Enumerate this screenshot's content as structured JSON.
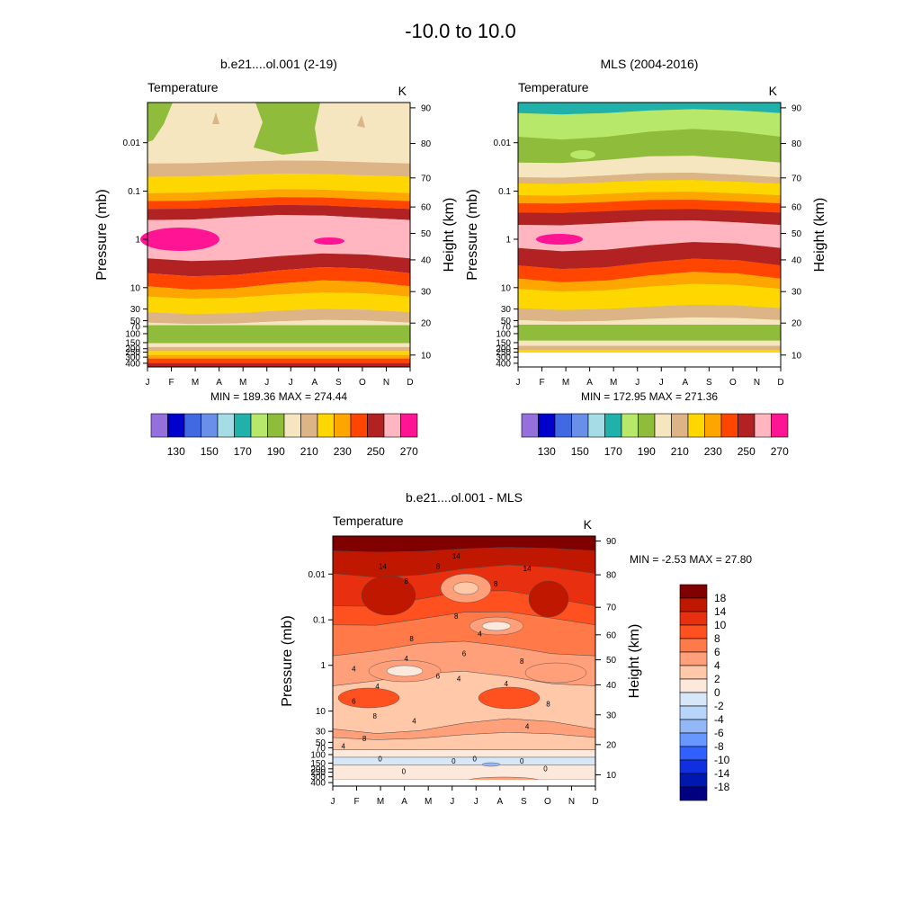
{
  "page_title": "-10.0 to  10.0",
  "chart_data": [
    {
      "type": "heatmap",
      "title": "b.e21....ol.001 (2-19)",
      "variable": "Temperature",
      "units": "K",
      "xlabel": "",
      "ylabel_left": "Pressure (mb)",
      "ylabel_right": "Height (km)",
      "x_ticks": [
        "J",
        "F",
        "M",
        "A",
        "M",
        "J",
        "J",
        "A",
        "S",
        "O",
        "N",
        "D"
      ],
      "pressure_ticks": [
        "0.01",
        "0.1",
        "1",
        "10",
        "30",
        "50",
        "70",
        "100",
        "150",
        "200",
        "250",
        "300",
        "400"
      ],
      "height_ticks": [
        "90",
        "80",
        "70",
        "60",
        "50",
        "40",
        "30",
        "20",
        "10"
      ],
      "min_max_text": "MIN = 189.36  MAX = 274.44",
      "min": 189.36,
      "max": 274.44,
      "color_levels": [
        130,
        140,
        150,
        160,
        170,
        180,
        190,
        200,
        210,
        220,
        230,
        240,
        250,
        260,
        270
      ],
      "colorbar_labels": [
        "130",
        "150",
        "170",
        "190",
        "210",
        "230",
        "250",
        "270"
      ]
    },
    {
      "type": "heatmap",
      "title": "MLS (2004-2016)",
      "variable": "Temperature",
      "units": "K",
      "xlabel": "",
      "ylabel_left": "Pressure (mb)",
      "ylabel_right": "Height (km)",
      "x_ticks": [
        "J",
        "F",
        "M",
        "A",
        "M",
        "J",
        "J",
        "A",
        "S",
        "O",
        "N",
        "D"
      ],
      "pressure_ticks": [
        "0.01",
        "0.1",
        "1",
        "10",
        "30",
        "50",
        "70",
        "100",
        "150",
        "200",
        "250",
        "300",
        "400"
      ],
      "height_ticks": [
        "90",
        "80",
        "70",
        "60",
        "50",
        "40",
        "30",
        "20",
        "10"
      ],
      "min_max_text": "MIN = 172.95  MAX = 271.36",
      "min": 172.95,
      "max": 271.36,
      "color_levels": [
        130,
        140,
        150,
        160,
        170,
        180,
        190,
        200,
        210,
        220,
        230,
        240,
        250,
        260,
        270
      ],
      "colorbar_labels": [
        "130",
        "150",
        "170",
        "190",
        "210",
        "230",
        "250",
        "270"
      ]
    },
    {
      "type": "heatmap",
      "title": "b.e21....ol.001 - MLS",
      "variable": "Temperature",
      "units": "K",
      "xlabel": "",
      "ylabel_left": "Pressure (mb)",
      "ylabel_right": "Height (km)",
      "x_ticks": [
        "J",
        "F",
        "M",
        "A",
        "M",
        "J",
        "J",
        "A",
        "S",
        "O",
        "N",
        "D"
      ],
      "pressure_ticks": [
        "0.01",
        "0.1",
        "1",
        "10",
        "30",
        "50",
        "70",
        "100",
        "150",
        "200",
        "250",
        "300",
        "400"
      ],
      "height_ticks": [
        "90",
        "80",
        "70",
        "60",
        "50",
        "40",
        "30",
        "20",
        "10"
      ],
      "min_max_text": "MIN =  -2.53  MAX =  27.80",
      "min": -2.53,
      "max": 27.8,
      "contour_labels": [
        "14",
        "8",
        "14",
        "8",
        "14",
        "8",
        "8",
        "4",
        "8",
        "4",
        "4",
        "6",
        "8",
        "4",
        "6",
        "4",
        "6",
        "4",
        "8",
        "8",
        "8",
        "4",
        "4",
        "4",
        "0",
        "0",
        "0",
        "0",
        "0",
        "0"
      ],
      "colorbar_labels": [
        "18",
        "14",
        "10",
        "8",
        "6",
        "4",
        "2",
        "0",
        "-2",
        "-4",
        "-6",
        "-8",
        "-10",
        "-14",
        "-18"
      ]
    }
  ],
  "colors": {
    "temperature_palette": [
      "#9370db",
      "#0000cd",
      "#4169e1",
      "#6a8fe8",
      "#a6dce6",
      "#20b2aa",
      "#b7e86a",
      "#8fbc3a",
      "#f5e6c0",
      "#dcb486",
      "#ffd700",
      "#ffa500",
      "#ff4500",
      "#b22222",
      "#ffb6c1",
      "#ff1493"
    ],
    "difference_palette": [
      "#800000",
      "#c01800",
      "#e83010",
      "#ff5020",
      "#ff7a48",
      "#ffa07a",
      "#ffc8a8",
      "#fde8dc",
      "#d6e8f8",
      "#b8d4f8",
      "#92b8f8",
      "#6898ff",
      "#3060ff",
      "#1030e0",
      "#0018b0",
      "#000080"
    ]
  }
}
